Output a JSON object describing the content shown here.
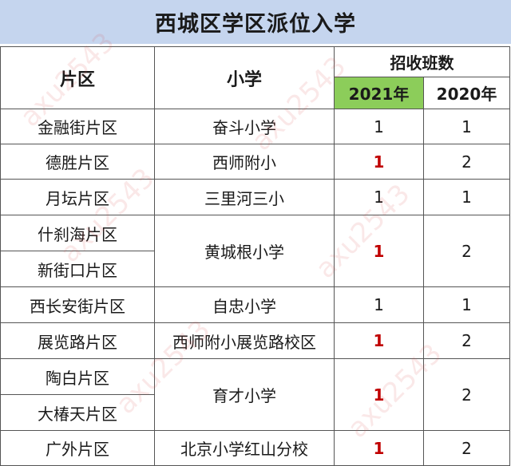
{
  "title": "西城区学区派位入学",
  "headers": {
    "district": "片区",
    "school": "小学",
    "classes": "招收班数",
    "year_a": "2021年",
    "year_b": "2020年"
  },
  "rows": [
    {
      "district": "金融街片区",
      "school": "奋斗小学",
      "y2021": "1",
      "y2020": "1"
    },
    {
      "district": "德胜片区",
      "school": "西师附小",
      "y2021": "1",
      "y2020": "2"
    },
    {
      "district": "月坛片区",
      "school": "三里河三小",
      "y2021": "1",
      "y2020": "1"
    },
    {
      "district": "什刹海片区",
      "school": "黄城根小学",
      "y2021": "1",
      "y2020": "2"
    },
    {
      "district": "新街口片区"
    },
    {
      "district": "西长安街片区",
      "school": "自忠小学",
      "y2021": "1",
      "y2020": "1"
    },
    {
      "district": "展览路片区",
      "school": "西师附小展览路校区",
      "y2021": "1",
      "y2020": "2"
    },
    {
      "district": "陶白片区",
      "school": "育才小学",
      "y2021": "1",
      "y2020": "2"
    },
    {
      "district": "大椿天片区"
    },
    {
      "district": "广外片区",
      "school": "北京小学红山分校",
      "y2021": "1",
      "y2020": "2"
    }
  ],
  "watermark": "axu2543",
  "colors": {
    "title_bg": "#c5d5ee",
    "year_2021_bg": "#8ccd5a",
    "highlight": "#c00000"
  }
}
